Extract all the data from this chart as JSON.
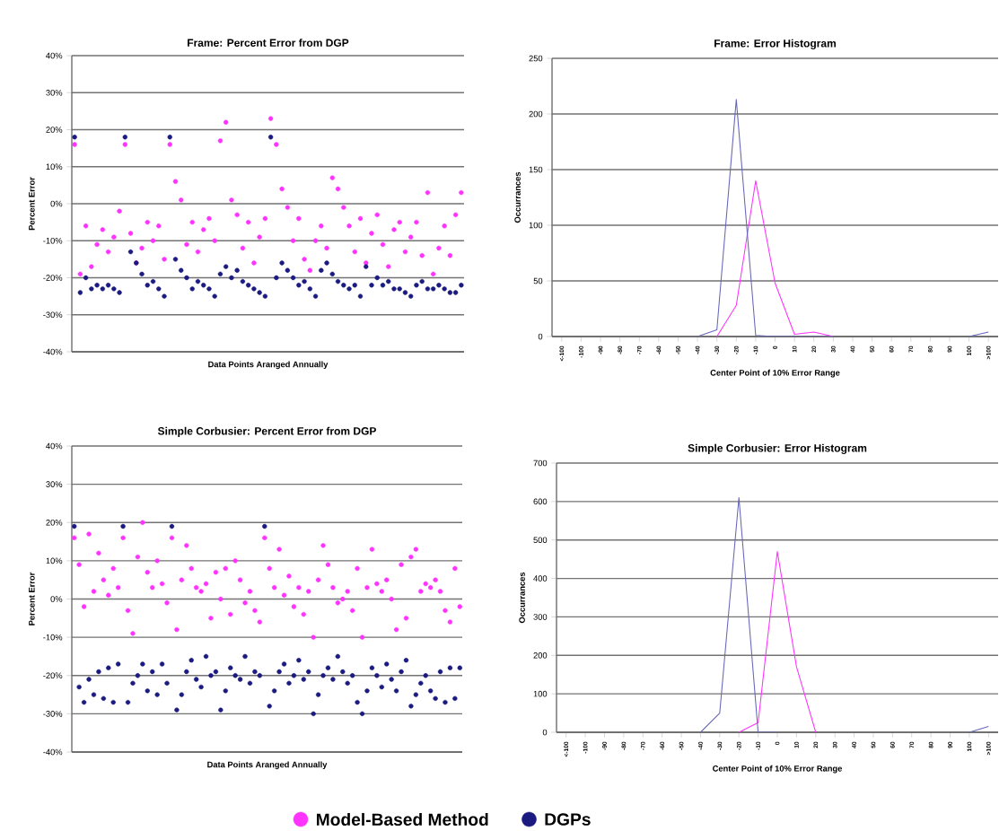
{
  "chart_data": [
    {
      "type": "scatter",
      "title": "Frame: Percent Error from DGP",
      "xlabel": "Data Points Aranged Annually",
      "ylabel": "Percent Error",
      "categories": [
        null,
        null,
        null,
        null,
        null,
        null,
        null,
        null,
        null,
        null,
        null,
        null,
        null,
        null,
        null,
        null,
        null,
        null,
        null,
        null,
        null,
        null,
        null,
        null,
        null,
        null,
        null,
        null,
        null,
        null,
        null,
        null,
        null,
        null,
        null,
        null,
        null,
        null,
        null,
        null,
        null,
        null,
        null,
        null,
        null,
        null,
        null,
        null,
        null,
        null,
        null,
        null,
        null,
        null,
        null,
        null,
        null,
        null,
        null,
        null,
        null,
        null,
        null,
        null,
        null,
        null,
        null,
        null,
        null,
        null
      ],
      "series": [
        {
          "name": "Model-Based Method",
          "color": "#ff33ff",
          "values": [
            16,
            -19,
            -6,
            -17,
            -11,
            -7,
            -13,
            -9,
            -2,
            16,
            -8,
            -16,
            -12,
            -5,
            -10,
            -6,
            -15,
            16,
            6,
            1,
            -11,
            -5,
            -13,
            -7,
            -4,
            -10,
            17,
            22,
            1,
            -3,
            -12,
            -5,
            -16,
            -9,
            -4,
            23,
            16,
            4,
            -1,
            -10,
            -4,
            -15,
            -18,
            -10,
            -6,
            -12,
            7,
            4,
            -1,
            -6,
            -13,
            -4,
            -16,
            -8,
            -3,
            -11,
            -17,
            -7,
            -5,
            -13,
            -9,
            -5,
            -14,
            3,
            -19,
            -12,
            -6,
            -14,
            -3,
            3
          ]
        },
        {
          "name": "DGPs",
          "color": "#1a1a80",
          "values": [
            18,
            -24,
            -20,
            -23,
            -22,
            -23,
            -22,
            -23,
            -24,
            18,
            -13,
            -16,
            -19,
            -22,
            -21,
            -23,
            -25,
            18,
            -15,
            -18,
            -20,
            -23,
            -21,
            -22,
            -23,
            -25,
            -19,
            -17,
            -20,
            -18,
            -21,
            -22,
            -23,
            -24,
            -25,
            18,
            -20,
            -16,
            -18,
            -20,
            -22,
            -21,
            -23,
            -25,
            -18,
            -16,
            -19,
            -21,
            -22,
            -23,
            -22,
            -25,
            -17,
            -22,
            -20,
            -22,
            -21,
            -23,
            -23,
            -24,
            -25,
            -22,
            -21,
            -23,
            -23,
            -22,
            -23,
            -24,
            -24,
            -22
          ]
        }
      ],
      "ylim": [
        -40,
        40
      ],
      "yticks": [
        {
          "value": -40,
          "label": "-40%"
        },
        {
          "value": -30,
          "label": "-30%"
        },
        {
          "value": -20,
          "label": "-20%"
        },
        {
          "value": -10,
          "label": "-10%"
        },
        {
          "value": 0,
          "label": "0%"
        },
        {
          "value": 10,
          "label": "10%"
        },
        {
          "value": 20,
          "label": "20%"
        },
        {
          "value": 30,
          "label": "30%"
        },
        {
          "value": 40,
          "label": "40%"
        }
      ],
      "grid": "y",
      "marker": "circle",
      "legend": "bottom"
    },
    {
      "type": "line",
      "title": "Frame: Error Histogram",
      "xlabel": "Center Point of 10% Error Range",
      "ylabel": "Occurrances",
      "categories": [
        "<-100",
        "-100",
        "-90",
        "-80",
        "-70",
        "-60",
        "-50",
        "-40",
        "-30",
        "-20",
        "-10",
        "0",
        "10",
        "20",
        "30",
        "40",
        "50",
        "60",
        "70",
        "80",
        "90",
        "100",
        ">100"
      ],
      "series": [
        {
          "color": "#ff33ff",
          "values": [
            null,
            null,
            null,
            null,
            null,
            null,
            null,
            null,
            0,
            28,
            140,
            48,
            2,
            4,
            0,
            null,
            null,
            null,
            null,
            null,
            null,
            null,
            null
          ]
        },
        {
          "color": "#6666bb",
          "values": [
            null,
            null,
            null,
            null,
            null,
            null,
            null,
            0,
            6,
            213,
            1,
            0,
            0,
            0,
            0,
            null,
            null,
            null,
            null,
            null,
            null,
            0,
            4
          ]
        }
      ],
      "ylim": [
        0,
        250
      ],
      "yticks": [
        0,
        50,
        100,
        150,
        200,
        250
      ],
      "grid": "y"
    },
    {
      "type": "scatter",
      "title": "Simple Corbusier: Percent Error from DGP",
      "xlabel": "Data Points Aranged Annually",
      "ylabel": "Percent Error",
      "categories": [
        null,
        null,
        null,
        null,
        null,
        null,
        null,
        null,
        null,
        null,
        null,
        null,
        null,
        null,
        null,
        null,
        null,
        null,
        null,
        null,
        null,
        null,
        null,
        null,
        null,
        null,
        null,
        null,
        null,
        null,
        null,
        null,
        null,
        null,
        null,
        null,
        null,
        null,
        null,
        null,
        null,
        null,
        null,
        null,
        null,
        null,
        null,
        null,
        null,
        null,
        null,
        null,
        null,
        null,
        null,
        null,
        null,
        null,
        null,
        null,
        null,
        null,
        null,
        null,
        null,
        null,
        null,
        null,
        null,
        null,
        null,
        null,
        null,
        null,
        null,
        null,
        null,
        null,
        null,
        null
      ],
      "series": [
        {
          "color": "#ff33ff",
          "values": [
            16,
            9,
            -2,
            17,
            2,
            12,
            5,
            1,
            8,
            3,
            16,
            -3,
            -9,
            11,
            20,
            7,
            3,
            10,
            4,
            -1,
            16,
            -8,
            5,
            14,
            8,
            3,
            2,
            4,
            -5,
            7,
            0,
            8,
            -4,
            10,
            5,
            -1,
            2,
            -3,
            -6,
            16,
            8,
            3,
            13,
            1,
            6,
            -2,
            3,
            -4,
            2,
            -10,
            5,
            14,
            9,
            3,
            -1,
            0,
            2,
            -3,
            8,
            -10,
            3,
            13,
            4,
            2,
            5,
            0,
            -8,
            9,
            -5,
            11,
            13,
            2,
            4,
            3,
            5,
            2,
            -3,
            -6,
            8,
            -2
          ]
        },
        {
          "color": "#1a1a80",
          "values": [
            19,
            -23,
            -27,
            -21,
            -25,
            -19,
            -26,
            -18,
            -27,
            -17,
            19,
            -27,
            -22,
            -20,
            -17,
            -24,
            -19,
            -25,
            -17,
            -22,
            19,
            -29,
            -25,
            -19,
            -16,
            -21,
            -23,
            -15,
            -20,
            -19,
            -29,
            -24,
            -18,
            -20,
            -21,
            -15,
            -22,
            -19,
            -20,
            19,
            -28,
            -24,
            -19,
            -17,
            -22,
            -20,
            -16,
            -21,
            -19,
            -30,
            -25,
            -20,
            -18,
            -21,
            -15,
            -19,
            -22,
            -20,
            -27,
            -30,
            -24,
            -18,
            -20,
            -23,
            -17,
            -21,
            -24,
            -19,
            -16,
            -28,
            -25,
            -22,
            -20,
            -24,
            -26,
            -19,
            -27,
            -18,
            -26,
            -18
          ]
        }
      ],
      "ylim": [
        -40,
        40
      ],
      "yticks": [
        {
          "value": -40,
          "label": "-40%"
        },
        {
          "value": -30,
          "label": "-30%"
        },
        {
          "value": -20,
          "label": "-20%"
        },
        {
          "value": -10,
          "label": "-10%"
        },
        {
          "value": 0,
          "label": "0%"
        },
        {
          "value": 10,
          "label": "10%"
        },
        {
          "value": 20,
          "label": "20%"
        },
        {
          "value": 30,
          "label": "30%"
        },
        {
          "value": 40,
          "label": "40%"
        }
      ],
      "grid": "y",
      "marker": "circle"
    },
    {
      "type": "line",
      "title": "Simple Corbusier: Error Histogram",
      "xlabel": "Center Point of 10% Error Range",
      "ylabel": "Occurrances",
      "categories": [
        "<-100",
        "-100",
        "-90",
        "-80",
        "-70",
        "-60",
        "-50",
        "-40",
        "-30",
        "-20",
        "-10",
        "0",
        "10",
        "20",
        "30",
        "40",
        "50",
        "60",
        "70",
        "80",
        "90",
        "100",
        ">100"
      ],
      "series": [
        {
          "color": "#ff33ff",
          "values": [
            null,
            null,
            null,
            null,
            null,
            null,
            null,
            null,
            null,
            0,
            25,
            470,
            170,
            0,
            null,
            null,
            null,
            null,
            null,
            null,
            null,
            null,
            null
          ]
        },
        {
          "color": "#6666bb",
          "values": [
            null,
            null,
            null,
            null,
            null,
            null,
            null,
            0,
            50,
            610,
            0,
            0,
            null,
            null,
            null,
            null,
            null,
            null,
            null,
            null,
            null,
            0,
            15
          ]
        }
      ],
      "ylim": [
        0,
        700
      ],
      "yticks": [
        0,
        100,
        200,
        300,
        400,
        500,
        600,
        700
      ],
      "grid": "y"
    }
  ]
}
